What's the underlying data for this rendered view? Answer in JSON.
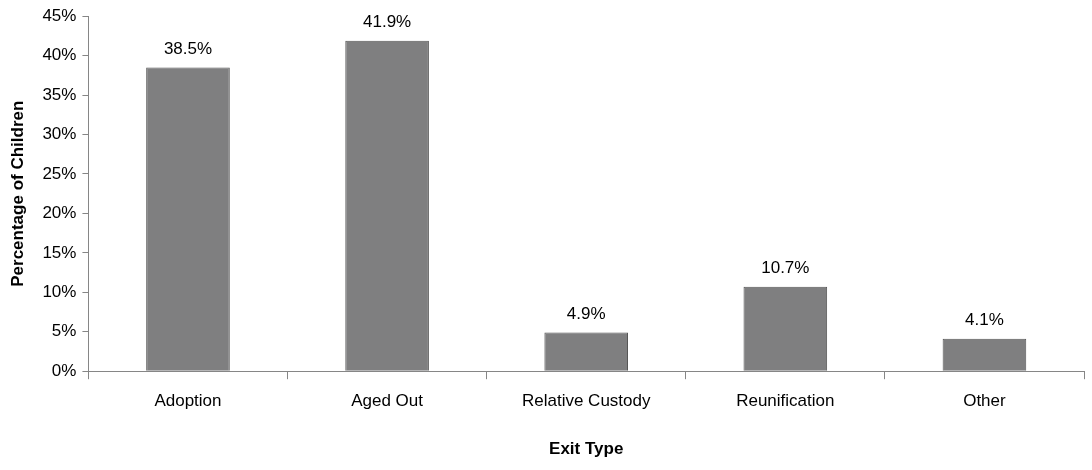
{
  "chart_data": {
    "type": "bar",
    "xlabel": "Exit Type",
    "ylabel": "Percentage of Children",
    "categories": [
      "Adoption",
      "Aged Out",
      "Relative Custody",
      "Reunification",
      "Other"
    ],
    "values": [
      38.5,
      41.9,
      4.9,
      10.7,
      4.1
    ],
    "value_labels": [
      "38.5%",
      "41.9%",
      "4.9%",
      "10.7%",
      "4.1%"
    ],
    "color": "#7f7f80",
    "ylim": [
      0,
      45
    ],
    "yticks": [
      {
        "value": 0,
        "label": "0%"
      },
      {
        "value": 5,
        "label": "5%"
      },
      {
        "value": 10,
        "label": "10%"
      },
      {
        "value": 15,
        "label": "15%"
      },
      {
        "value": 20,
        "label": "20%"
      },
      {
        "value": 25,
        "label": "25%"
      },
      {
        "value": 30,
        "label": "30%"
      },
      {
        "value": 35,
        "label": "35%"
      },
      {
        "value": 40,
        "label": "40%"
      },
      {
        "value": 45,
        "label": "45%"
      }
    ],
    "grid": false,
    "legend": false
  }
}
